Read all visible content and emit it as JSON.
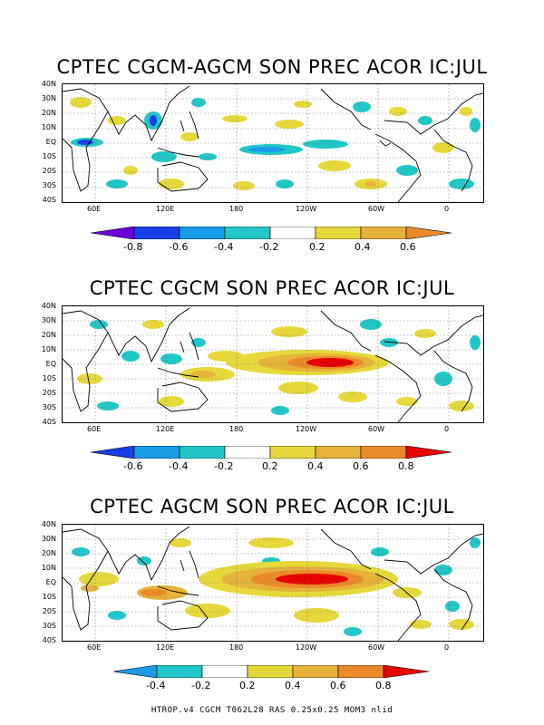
{
  "panels": [
    {
      "title": "CPTEC CGCM-AGCM SON PREC ACOR IC:JUL",
      "y_ticks": [
        "40N",
        "30N",
        "20N",
        "10N",
        "EQ",
        "10S",
        "20S",
        "30S",
        "40S"
      ],
      "x_ticks": [
        "60E",
        "120E",
        "180",
        "120W",
        "60W",
        "0"
      ],
      "colorbar": {
        "labels": [
          "-0.8",
          "-0.6",
          "-0.4",
          "-0.2",
          "0.2",
          "0.4",
          "0.6"
        ],
        "bins": [
          {
            "color": "#6a00d8"
          },
          {
            "color": "#1a3ee6"
          },
          {
            "color": "#1a9be6"
          },
          {
            "color": "#22c6c6"
          },
          {
            "color": "#ffffff"
          },
          {
            "color": "#e6d83a"
          },
          {
            "color": "#e6b23a"
          },
          {
            "color": "#ea8a2a"
          }
        ]
      }
    },
    {
      "title": "CPTEC CGCM SON PREC ACOR IC:JUL",
      "y_ticks": [
        "40N",
        "30N",
        "20N",
        "10N",
        "EQ",
        "10S",
        "20S",
        "30S",
        "40S"
      ],
      "x_ticks": [
        "60E",
        "120E",
        "180",
        "120W",
        "60W",
        "0"
      ],
      "colorbar": {
        "labels": [
          "-0.6",
          "-0.4",
          "-0.2",
          "0.2",
          "0.4",
          "0.6",
          "0.8"
        ],
        "bins": [
          {
            "color": "#1a3ee6"
          },
          {
            "color": "#1a9be6"
          },
          {
            "color": "#22c6c6"
          },
          {
            "color": "#ffffff"
          },
          {
            "color": "#e6d83a"
          },
          {
            "color": "#e6b23a"
          },
          {
            "color": "#ea8a2a"
          },
          {
            "color": "#e60000"
          }
        ]
      }
    },
    {
      "title": "CPTEC AGCM SON PREC ACOR IC:JUL",
      "y_ticks": [
        "40N",
        "30N",
        "20N",
        "10N",
        "EQ",
        "10S",
        "20S",
        "30S",
        "40S"
      ],
      "x_ticks": [
        "60E",
        "120E",
        "180",
        "120W",
        "60W",
        "0"
      ],
      "colorbar": {
        "labels": [
          "-0.4",
          "-0.2",
          "0.2",
          "0.4",
          "0.6",
          "0.8"
        ],
        "bins": [
          {
            "color": "#1a9be6"
          },
          {
            "color": "#22c6c6"
          },
          {
            "color": "#ffffff"
          },
          {
            "color": "#e6d83a"
          },
          {
            "color": "#e6b23a"
          },
          {
            "color": "#ea8a2a"
          },
          {
            "color": "#e60000"
          }
        ]
      }
    }
  ],
  "footer": "HTROP.v4 CGCM T062L28 RAS 0.25x0.25 MOM3 nlid"
}
